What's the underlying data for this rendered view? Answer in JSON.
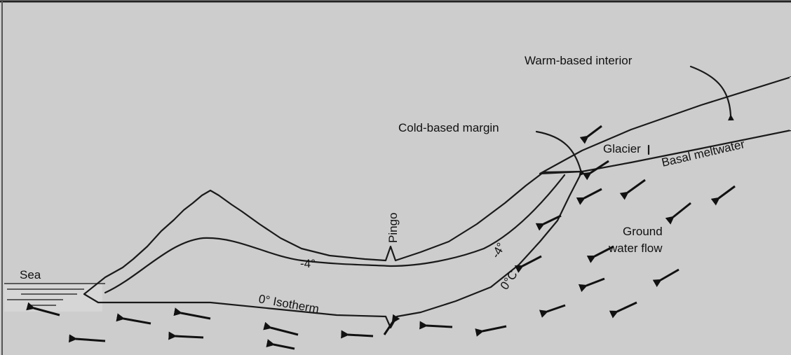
{
  "labels": {
    "warm_based_interior": "Warm-based interior",
    "cold_based_margin": "Cold-based margin",
    "glacier": "Glacier",
    "basal_meltwater": "Basal meltwater",
    "ground_water_flow": [
      "Ground",
      "water flow"
    ],
    "sea": "Sea",
    "pingo": "Pingo",
    "minus_four_left": "-4°",
    "minus_four_right": "-4°",
    "zero_isotherm": "0° Isotherm",
    "zero_c": "0°C"
  }
}
